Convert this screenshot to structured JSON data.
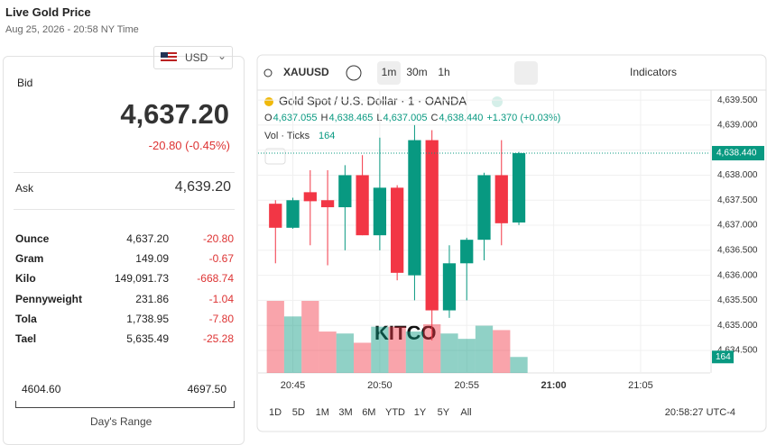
{
  "header": {
    "title": "Live Gold Price",
    "date": "Aug 25, 2026 - 20:58 NY Time"
  },
  "quote": {
    "currency": "USD",
    "bid_label": "Bid",
    "bid": "4,637.20",
    "change": "-20.80 (-0.45%)",
    "ask_label": "Ask",
    "ask": "4,639.20"
  },
  "table": {
    "rows": [
      [
        "Ounce",
        "4,637.20",
        "-20.80"
      ],
      [
        "Gram",
        "149.09",
        "-0.67"
      ],
      [
        "Kilo",
        "149,091.73",
        "-668.74"
      ],
      [
        "Pennyweight",
        "231.86",
        "-1.04"
      ],
      [
        "Tola",
        "1,738.95",
        "-7.80"
      ],
      [
        "Tael",
        "5,635.49",
        "-25.28"
      ]
    ]
  },
  "range": {
    "low": "4604.60",
    "high": "4697.50",
    "label": "Day's Range"
  },
  "toolbar": {
    "symbol": "XAUUSD",
    "intervals": [
      "1m",
      "30m",
      "1h"
    ],
    "indicators": "Indicators"
  },
  "legend": {
    "name": "Gold Spot / U.S. Dollar · 1 · OANDA",
    "ohlc": [
      "O",
      "4,637.055",
      "H",
      "4,638.465",
      "L",
      "4,637.005",
      "C",
      "4,638.440",
      "+1.370 (+0.03%)"
    ],
    "volume_label": "Vol · Ticks",
    "volume_value": "164"
  },
  "logo": "KITCO",
  "footer": {
    "ranges": [
      "1D",
      "5D",
      "1M",
      "3M",
      "6M",
      "YTD",
      "1Y",
      "5Y",
      "All"
    ],
    "time": "20:58:27 UTC-4"
  },
  "chart_data": {
    "type": "candlestick",
    "x": [
      "20:44",
      "20:45",
      "20:46",
      "20:47",
      "20:48",
      "20:49",
      "20:50",
      "20:51",
      "20:52",
      "20:53",
      "20:54",
      "20:55",
      "20:56",
      "20:57",
      "20:58"
    ],
    "open": [
      4637.43,
      4636.95,
      4637.66,
      4637.5,
      4637.36,
      4638.0,
      4636.8,
      4637.75,
      4636.0,
      4638.7,
      4635.3,
      4636.24,
      4636.71,
      4638.0,
      4637.055
    ],
    "high": [
      4637.5,
      4637.55,
      4638.1,
      4638.1,
      4638.2,
      4638.4,
      4638.75,
      4637.8,
      4639.0,
      4638.9,
      4636.6,
      4636.75,
      4638.05,
      4638.7,
      4638.465
    ],
    "low": [
      4636.24,
      4636.93,
      4636.6,
      4636.2,
      4636.5,
      4636.8,
      4636.5,
      4635.9,
      4635.5,
      4634.7,
      4635.15,
      4635.5,
      4636.3,
      4636.6,
      4637.005
    ],
    "close": [
      4636.95,
      4637.5,
      4637.48,
      4637.36,
      4638.0,
      4636.8,
      4637.75,
      4636.05,
      4638.7,
      4635.3,
      4636.24,
      4636.71,
      4638.0,
      4637.04,
      4638.44
    ],
    "volume": [
      740,
      580,
      740,
      425,
      405,
      310,
      475,
      475,
      425,
      500,
      405,
      350,
      485,
      440,
      164
    ],
    "up_color": "#089981",
    "down_color": "#f23645",
    "ylim": [
      4634.05,
      4639.7
    ],
    "yticks": [
      {
        "value": 4634.5,
        "label": "4,634.500"
      },
      {
        "value": 4635,
        "label": "4,635.000"
      },
      {
        "value": 4635.5,
        "label": "4,635.500"
      },
      {
        "value": 4636,
        "label": "4,636.000"
      },
      {
        "value": 4636.5,
        "label": "4,636.500"
      },
      {
        "value": 4637,
        "label": "4,637.000"
      },
      {
        "value": 4637.5,
        "label": "4,637.500"
      },
      {
        "value": 4638,
        "label": "4,638.000"
      },
      {
        "value": 4638.5,
        "label": "4,638.500"
      },
      {
        "value": 4639,
        "label": "4,639.000"
      },
      {
        "value": 4639.5,
        "label": "4,639.500"
      }
    ],
    "xlim": [
      "20:43",
      "21:09"
    ],
    "xticks": [
      "20:45",
      "20:50",
      "20:55",
      "21:00",
      "21:05"
    ],
    "last_price": 4638.44,
    "last_price_label": "4,638.440",
    "grid": true
  }
}
